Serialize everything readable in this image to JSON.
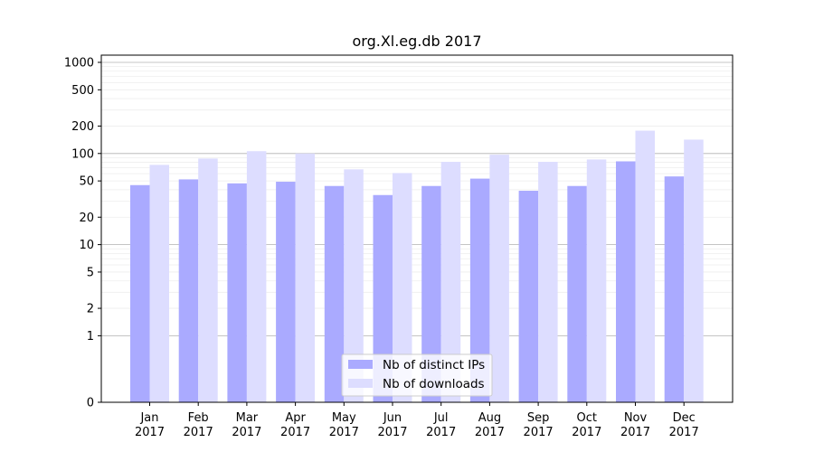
{
  "chart_data": {
    "type": "bar",
    "title": "org.Xl.eg.db 2017",
    "xlabel": "",
    "ylabel": "",
    "y_scale": "symlog",
    "ylim": [
      0,
      1200
    ],
    "y_ticks": [
      0,
      1,
      2,
      5,
      10,
      20,
      50,
      100,
      200,
      500,
      1000
    ],
    "y_tick_labels": [
      "0",
      "1",
      "2",
      "5",
      "10",
      "20",
      "50",
      "100",
      "200",
      "500",
      "1000"
    ],
    "grid": "horizontal",
    "legend_position": "bottom-center",
    "categories": [
      [
        "Jan",
        "2017"
      ],
      [
        "Feb",
        "2017"
      ],
      [
        "Mar",
        "2017"
      ],
      [
        "Apr",
        "2017"
      ],
      [
        "May",
        "2017"
      ],
      [
        "Jun",
        "2017"
      ],
      [
        "Jul",
        "2017"
      ],
      [
        "Aug",
        "2017"
      ],
      [
        "Sep",
        "2017"
      ],
      [
        "Oct",
        "2017"
      ],
      [
        "Nov",
        "2017"
      ],
      [
        "Dec",
        "2017"
      ]
    ],
    "series": [
      {
        "name": "Nb of distinct IPs",
        "color": "#aaaaff",
        "values": [
          45,
          52,
          47,
          49,
          44,
          35,
          44,
          53,
          39,
          44,
          82,
          56
        ]
      },
      {
        "name": "Nb of downloads",
        "color": "#ddddff",
        "values": [
          75,
          88,
          106,
          100,
          67,
          61,
          81,
          97,
          81,
          86,
          178,
          142
        ]
      }
    ]
  }
}
